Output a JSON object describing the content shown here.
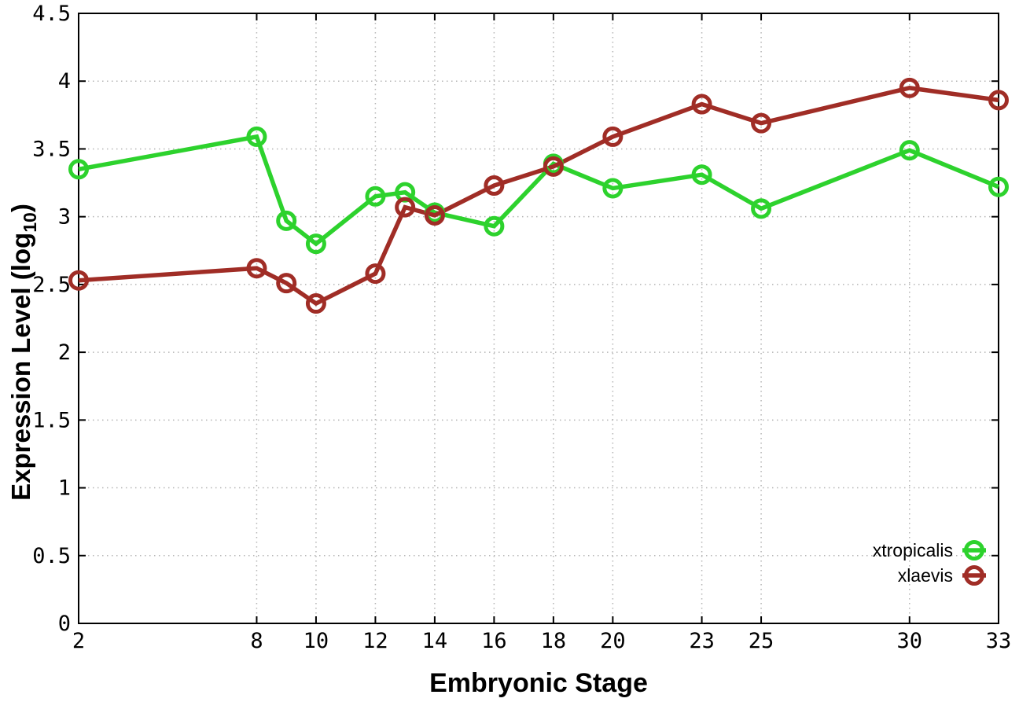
{
  "figure": {
    "background": "#ffffff",
    "border_color": "#000000",
    "grid_color": "#b4b4b4",
    "text_color": "#000000"
  },
  "chart_data": {
    "type": "line",
    "title": "",
    "xlabel": "Embryonic Stage",
    "ylabel": "Expression Level (log10)",
    "ylabel_parts": {
      "prefix": "Expression Level (log",
      "sub": "10",
      "suffix": ")"
    },
    "x": [
      2,
      8,
      9,
      10,
      12,
      13,
      14,
      16,
      18,
      20,
      23,
      25,
      30,
      33
    ],
    "series": [
      {
        "name": "xtropicalis",
        "color": "#2dd22d",
        "marker": "open-circle",
        "values": [
          3.35,
          3.59,
          2.97,
          2.8,
          3.15,
          3.18,
          3.03,
          2.93,
          3.39,
          3.21,
          3.31,
          3.06,
          3.49,
          3.22
        ]
      },
      {
        "name": "xlaevis",
        "color": "#a02d26",
        "marker": "open-circle",
        "values": [
          2.53,
          2.62,
          2.51,
          2.36,
          2.58,
          3.07,
          3.01,
          3.23,
          3.37,
          3.59,
          3.83,
          3.69,
          3.95,
          3.86
        ]
      }
    ],
    "xlim": [
      2,
      33
    ],
    "ylim": [
      0,
      4.5
    ],
    "xticks": [
      2,
      8,
      10,
      12,
      14,
      16,
      18,
      20,
      23,
      25,
      30,
      33
    ],
    "yticks": [
      0,
      0.5,
      1,
      1.5,
      2,
      2.5,
      3,
      3.5,
      4,
      4.5
    ],
    "grid": true,
    "legend_position": "bottom-right",
    "legend": [
      "xtropicalis",
      "xlaevis"
    ]
  }
}
